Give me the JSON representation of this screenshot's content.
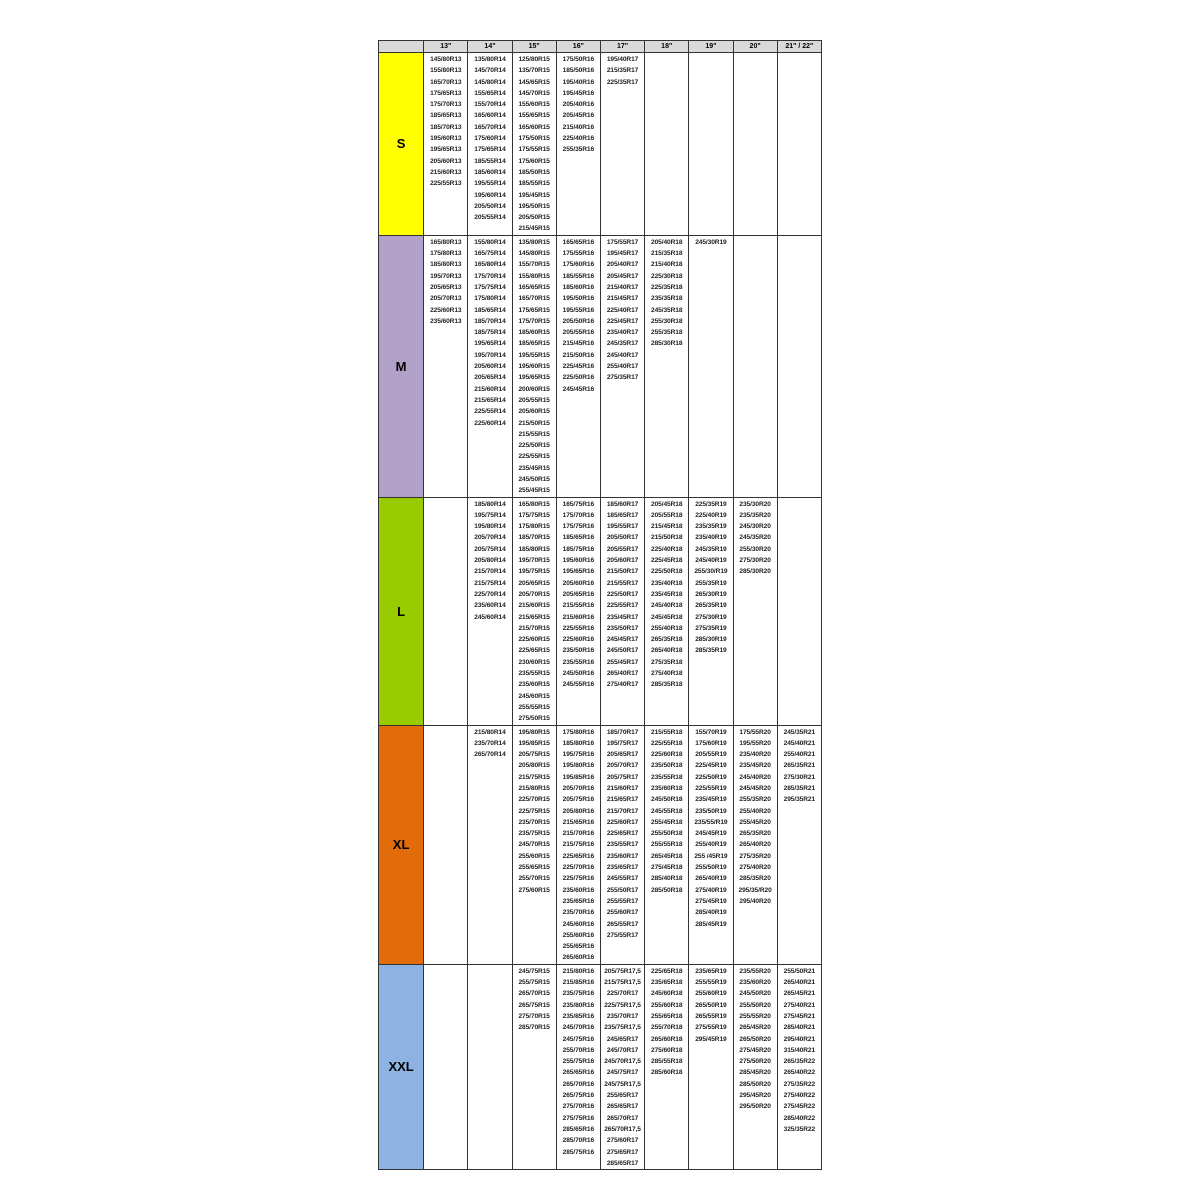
{
  "header": {
    "corner": "",
    "columns": [
      "13\"",
      "14\"",
      "15\"",
      "16\"",
      "17\"",
      "18\"",
      "19\"",
      "20\"",
      "21\" / 22\""
    ]
  },
  "rows": [
    {
      "size": "S",
      "color": "#ffff00",
      "cells": [
        [
          "145/80R13",
          "155/80R13",
          "165/70R13",
          "175/65R13",
          "175/70R13",
          "185/65R13",
          "185/70R13",
          "195/60R13",
          "195/65R13",
          "205/60R13",
          "215/60R13",
          "225/55R13"
        ],
        [
          "135/80R14",
          "145/70R14",
          "145/80R14",
          "155/65R14",
          "155/70R14",
          "165/60R14",
          "165/70R14",
          "175/60R14",
          "175/65R14",
          "185/55R14",
          "185/60R14",
          "195/55R14",
          "195/60R14",
          "205/50R14",
          "205/55R14"
        ],
        [
          "125/80R15",
          "135/70R15",
          "145/65R15",
          "145/70R15",
          "155/60R15",
          "155/65R15",
          "165/60R15",
          "175/50R15",
          "175/55R15",
          "175/60R15",
          "185/50R15",
          "185/55R15",
          "195/45R15",
          "195/50R15",
          "205/50R15",
          "215/45R15"
        ],
        [
          "175/50R16",
          "185/50R16",
          "195/40R16",
          "195/45R16",
          "205/40R16",
          "205/45R16",
          "215/40R16",
          "225/40R16",
          "255/35R16"
        ],
        [
          "195/40R17",
          "215/35R17",
          "225/35R17"
        ],
        [],
        [],
        [],
        []
      ]
    },
    {
      "size": "M",
      "color": "#b1a0c7",
      "cells": [
        [
          "165/80R13",
          "175/80R13",
          "185/80R13",
          "195/70R13",
          "205/65R13",
          "205/70R13",
          "225/60R13",
          "235/60R13"
        ],
        [
          "155/80R14",
          "165/75R14",
          "165/80R14",
          "175/70R14",
          "175/75R14",
          "175/80R14",
          "185/65R14",
          "185/70R14",
          "185/75R14",
          "195/65R14",
          "195/70R14",
          "205/60R14",
          "205/65R14",
          "215/60R14",
          "215/65R14",
          "225/55R14",
          "225/60R14"
        ],
        [
          "135/80R15",
          "145/80R15",
          "155/70R15",
          "155/80R15",
          "165/65R15",
          "165/70R15",
          "175/65R15",
          "175/70R15",
          "185/60R15",
          "185/65R15",
          "195/55R15",
          "195/60R15",
          "195/65R15",
          "200/60R15",
          "205/55R15",
          "205/60R15",
          "215/50R15",
          "215/55R15",
          "225/50R15",
          "225/55R15",
          "235/45R15",
          "245/50R15",
          "255/45R15"
        ],
        [
          "165/65R16",
          "175/55R16",
          "175/60R16",
          "185/55R16",
          "185/60R16",
          "195/50R16",
          "195/55R16",
          "205/50R16",
          "205/55R16",
          "215/45R16",
          "215/50R16",
          "225/45R16",
          "225/50R16",
          "245/45R16"
        ],
        [
          "175/55R17",
          "195/45R17",
          "205/40R17",
          "205/45R17",
          "215/40R17",
          "215/45R17",
          "225/40R17",
          "225/45R17",
          "235/40R17",
          "245/35R17",
          "245/40R17",
          "255/40R17",
          "275/35R17"
        ],
        [
          "205/40R18",
          "215/35R18",
          "215/40R18",
          "225/30R18",
          "225/35R18",
          "235/35R18",
          "245/35R18",
          "255/30R18",
          "255/35R18",
          "285/30R18"
        ],
        [
          "245/30R19"
        ],
        [],
        []
      ]
    },
    {
      "size": "L",
      "color": "#99cc00",
      "cells": [
        [],
        [
          "185/80R14",
          "195/75R14",
          "195/80R14",
          "205/70R14",
          "205/75R14",
          "205/80R14",
          "215/70R14",
          "215/75R14",
          "225/70R14",
          "235/60R14",
          "245/60R14"
        ],
        [
          "165/80R15",
          "175/75R15",
          "175/80R15",
          "185/70R15",
          "185/80R15",
          "195/70R15",
          "195/75R15",
          "205/65R15",
          "205/70R15",
          "215/60R15",
          "215/65R15",
          "215/70R15",
          "225/60R15",
          "225/65R15",
          "230/60R15",
          "235/55R15",
          "235/60R15",
          "245/60R15",
          "255/55R15",
          "275/50R15"
        ],
        [
          "165/75R16",
          "175/70R16",
          "175/75R16",
          "185/65R16",
          "185/75R16",
          "195/60R16",
          "195/65R16",
          "205/60R16",
          "205/65R16",
          "215/55R16",
          "215/60R16",
          "225/55R16",
          "225/60R16",
          "235/50R16",
          "235/55R16",
          "245/50R16",
          "245/55R16"
        ],
        [
          "185/60R17",
          "185/65R17",
          "195/55R17",
          "205/50R17",
          "205/55R17",
          "205/60R17",
          "215/50R17",
          "215/55R17",
          "225/50R17",
          "225/55R17",
          "235/45R17",
          "235/50R17",
          "245/45R17",
          "245/50R17",
          "255/45R17",
          "265/40R17",
          "275/40R17"
        ],
        [
          "205/45R18",
          "205/55R18",
          "215/45R18",
          "215/50R18",
          "225/40R18",
          "225/45R18",
          "225/50R18",
          "235/40R18",
          "235/45R18",
          "245/40R18",
          "245/45R18",
          "255/40R18",
          "265/35R18",
          "265/40R18",
          "275/35R18",
          "275/40R18",
          "285/35R18"
        ],
        [
          "225/35R19",
          "225/40R19",
          "235/35R19",
          "235/40R19",
          "245/35R19",
          "245/40R19",
          "255/30/R19",
          "255/35R19",
          "265/30R19",
          "265/35R19",
          "275/30R19",
          "275/35R19",
          "285/30R19",
          "285/35R19"
        ],
        [
          "235/30R20",
          "235/35R20",
          "245/30R20",
          "245/35R20",
          "255/30R20",
          "275/30R20",
          "285/30R20"
        ],
        []
      ]
    },
    {
      "size": "XL",
      "color": "#e36c0a",
      "cells": [
        [],
        [
          "215/80R14",
          "235/70R14",
          "265/70R14"
        ],
        [
          "195/80R15",
          "195/85R15",
          "205/75R15",
          "205/80R15",
          "215/75R15",
          "215/80R15",
          "225/70R15",
          "225/75R15",
          "235/70R15",
          "235/75R15",
          "245/70R15",
          "255/60R15",
          "255/65R15",
          "255/70R15",
          "275/60R15"
        ],
        [
          "175/80R16",
          "185/80R16",
          "195/75R16",
          "195/80R16",
          "195/85R16",
          "205/70R16",
          "205/75R16",
          "205/80R16",
          "215/65R16",
          "215/70R16",
          "215/75R16",
          "225/65R16",
          "225/70R16",
          "225/75R16",
          "235/60R16",
          "235/65R16",
          "235/70R16",
          "245/60R16",
          "255/60R16",
          "255/65R16",
          "265/60R16"
        ],
        [
          "185/70R17",
          "195/75R17",
          "205/65R17",
          "205/70R17",
          "205/75R17",
          "215/60R17",
          "215/65R17",
          "215/70R17",
          "225/60R17",
          "225/65R17",
          "235/55R17",
          "235/60R17",
          "235/65R17",
          "245/55R17",
          "255/50R17",
          "255/55R17",
          "255/60R17",
          "265/55R17",
          "275/55R17"
        ],
        [
          "215/55R18",
          "225/55R18",
          "225/60R18",
          "235/50R18",
          "235/55R18",
          "235/60R18",
          "245/50R18",
          "245/55R18",
          "255/45R18",
          "255/50R18",
          "255/55R18",
          "265/45R18",
          "275/45R18",
          "285/40R18",
          "285/50R18"
        ],
        [
          "155/70R19",
          "175/60R19",
          "205/55R19",
          "225/45R19",
          "225/50R19",
          "225/55R19",
          "235/45R19",
          "235/50R19",
          "235/55/R19",
          "245/45R19",
          "255/40R19",
          "255 /45R19",
          "255/50R19",
          "265/40R19",
          "275/40R19",
          "275/45R19",
          "285/40R19",
          "285/45R19"
        ],
        [
          "175/55R20",
          "195/55R20",
          "235/40R20",
          "235/45R20",
          "245/40R20",
          "245/45R20",
          "255/35R20",
          "255/40R20",
          "255/45R20",
          "265/35R20",
          "265/40R20",
          "275/35R20",
          "275/40R20",
          "285/35R20",
          "295/35/R20",
          "295/40R20"
        ],
        [
          "245/35R21",
          "245/40R21",
          "255/40R21",
          "265/35R21",
          "275/30R21",
          "285/35R21",
          "295/35R21"
        ]
      ]
    },
    {
      "size": "XXL",
      "color": "#8db3e2",
      "cells": [
        [],
        [],
        [
          "245/75R15",
          "255/75R15",
          "265/70R15",
          "265/75R15",
          "275/70R15",
          "285/70R15"
        ],
        [
          "215/80R16",
          "215/85R16",
          "235/75R16",
          "235/80R16",
          "235/85R16",
          "245/70R16",
          "245/75R16",
          "255/70R16",
          "255/75R16",
          "265/65R16",
          "265/70R16",
          "265/75R16",
          "275/70R16",
          "275/75R16",
          "285/65R16",
          "285/70R16",
          "285/75R16"
        ],
        [
          "205/75R17,5",
          "215/75R17,5",
          "225/70R17",
          "225/75R17,5",
          "235/70R17",
          "235/75R17,5",
          "245/65R17",
          "245/70R17",
          "245/70R17,5",
          "245/75R17",
          "245/75R17,5",
          "255/65R17",
          "265/65R17",
          "265/70R17",
          "265/70R17,5",
          "275/60R17",
          "275/65R17",
          "285/65R17"
        ],
        [
          "225/65R18",
          "235/65R18",
          "245/60R18",
          "255/60R18",
          "255/65R18",
          "255/70R18",
          "265/60R18",
          "275/60R18",
          "285/55R18",
          "285/60R18"
        ],
        [
          "235/65R19",
          "255/55R19",
          "255/60R19",
          "265/50R19",
          "265/55R19",
          "275/55R19",
          "295/45R19"
        ],
        [
          "235/55R20",
          "235/60R20",
          "245/50R20",
          "255/50R20",
          "255/55R20",
          "265/45R20",
          "265/50R20",
          "275/45R20",
          "275/50R20",
          "285/45R20",
          "285/50R20",
          "295/45R20",
          "295/50R20"
        ],
        [
          "255/50R21",
          "265/40R21",
          "265/45R21",
          "275/40R21",
          "275/45R21",
          "285/40R21",
          "295/40R21",
          "315/40R21",
          "265/35R22",
          "265/40R22",
          "275/35R22",
          "275/40R22",
          "275/45R22",
          "285/40R22",
          "325/35R22"
        ]
      ]
    }
  ]
}
